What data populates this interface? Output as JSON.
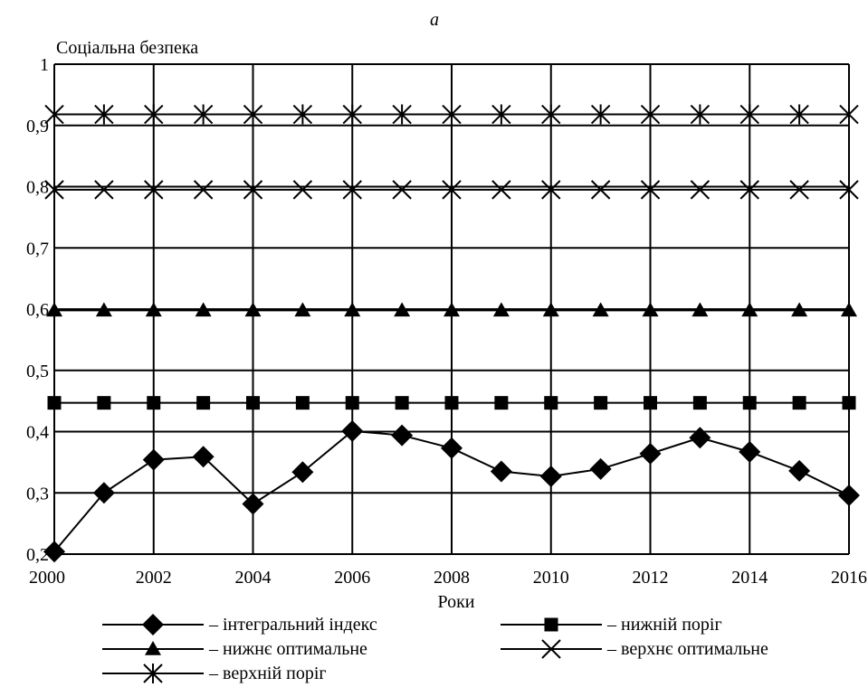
{
  "chart_data": {
    "type": "line",
    "panel_label": "а",
    "ylabel": "Соціальна безпека",
    "xlabel": "Роки",
    "ylim": [
      0.2,
      1.0
    ],
    "xlim": [
      2000,
      2016
    ],
    "yticks": [
      "0,2",
      "0,3",
      "0,4",
      "0,5",
      "0,6",
      "0,7",
      "0,8",
      "0,9",
      "1"
    ],
    "xticks": [
      "2000",
      "2002",
      "2004",
      "2006",
      "2008",
      "2010",
      "2012",
      "2014",
      "2016"
    ],
    "grid": true,
    "legend_position": "bottom",
    "x": [
      2000,
      2001,
      2002,
      2003,
      2004,
      2005,
      2006,
      2007,
      2008,
      2009,
      2010,
      2011,
      2012,
      2013,
      2014,
      2015,
      2016
    ],
    "series": [
      {
        "name": "– інтегральний індекс",
        "marker": "diamond",
        "values": [
          0.204,
          0.3,
          0.354,
          0.359,
          0.282,
          0.334,
          0.401,
          0.394,
          0.373,
          0.335,
          0.327,
          0.339,
          0.364,
          0.39,
          0.367,
          0.336,
          0.296
        ]
      },
      {
        "name": "– нижній поріг",
        "marker": "square",
        "values": [
          0.447,
          0.447,
          0.447,
          0.447,
          0.447,
          0.447,
          0.447,
          0.447,
          0.447,
          0.447,
          0.447,
          0.447,
          0.447,
          0.447,
          0.447,
          0.447,
          0.447
        ]
      },
      {
        "name": "– нижнє оптимальне",
        "marker": "triangle",
        "values": [
          0.598,
          0.598,
          0.598,
          0.598,
          0.598,
          0.598,
          0.598,
          0.598,
          0.598,
          0.598,
          0.598,
          0.598,
          0.598,
          0.598,
          0.598,
          0.598,
          0.598
        ]
      },
      {
        "name": "– верхнє оптимальне",
        "marker": "x",
        "values": [
          0.795,
          0.795,
          0.795,
          0.795,
          0.795,
          0.795,
          0.795,
          0.795,
          0.795,
          0.795,
          0.795,
          0.795,
          0.795,
          0.795,
          0.795,
          0.795,
          0.795
        ]
      },
      {
        "name": "– верхній поріг",
        "marker": "asterisk",
        "values": [
          0.918,
          0.918,
          0.918,
          0.918,
          0.918,
          0.918,
          0.918,
          0.918,
          0.918,
          0.918,
          0.918,
          0.918,
          0.918,
          0.918,
          0.918,
          0.918,
          0.918
        ]
      }
    ],
    "line_color": "#000000"
  }
}
